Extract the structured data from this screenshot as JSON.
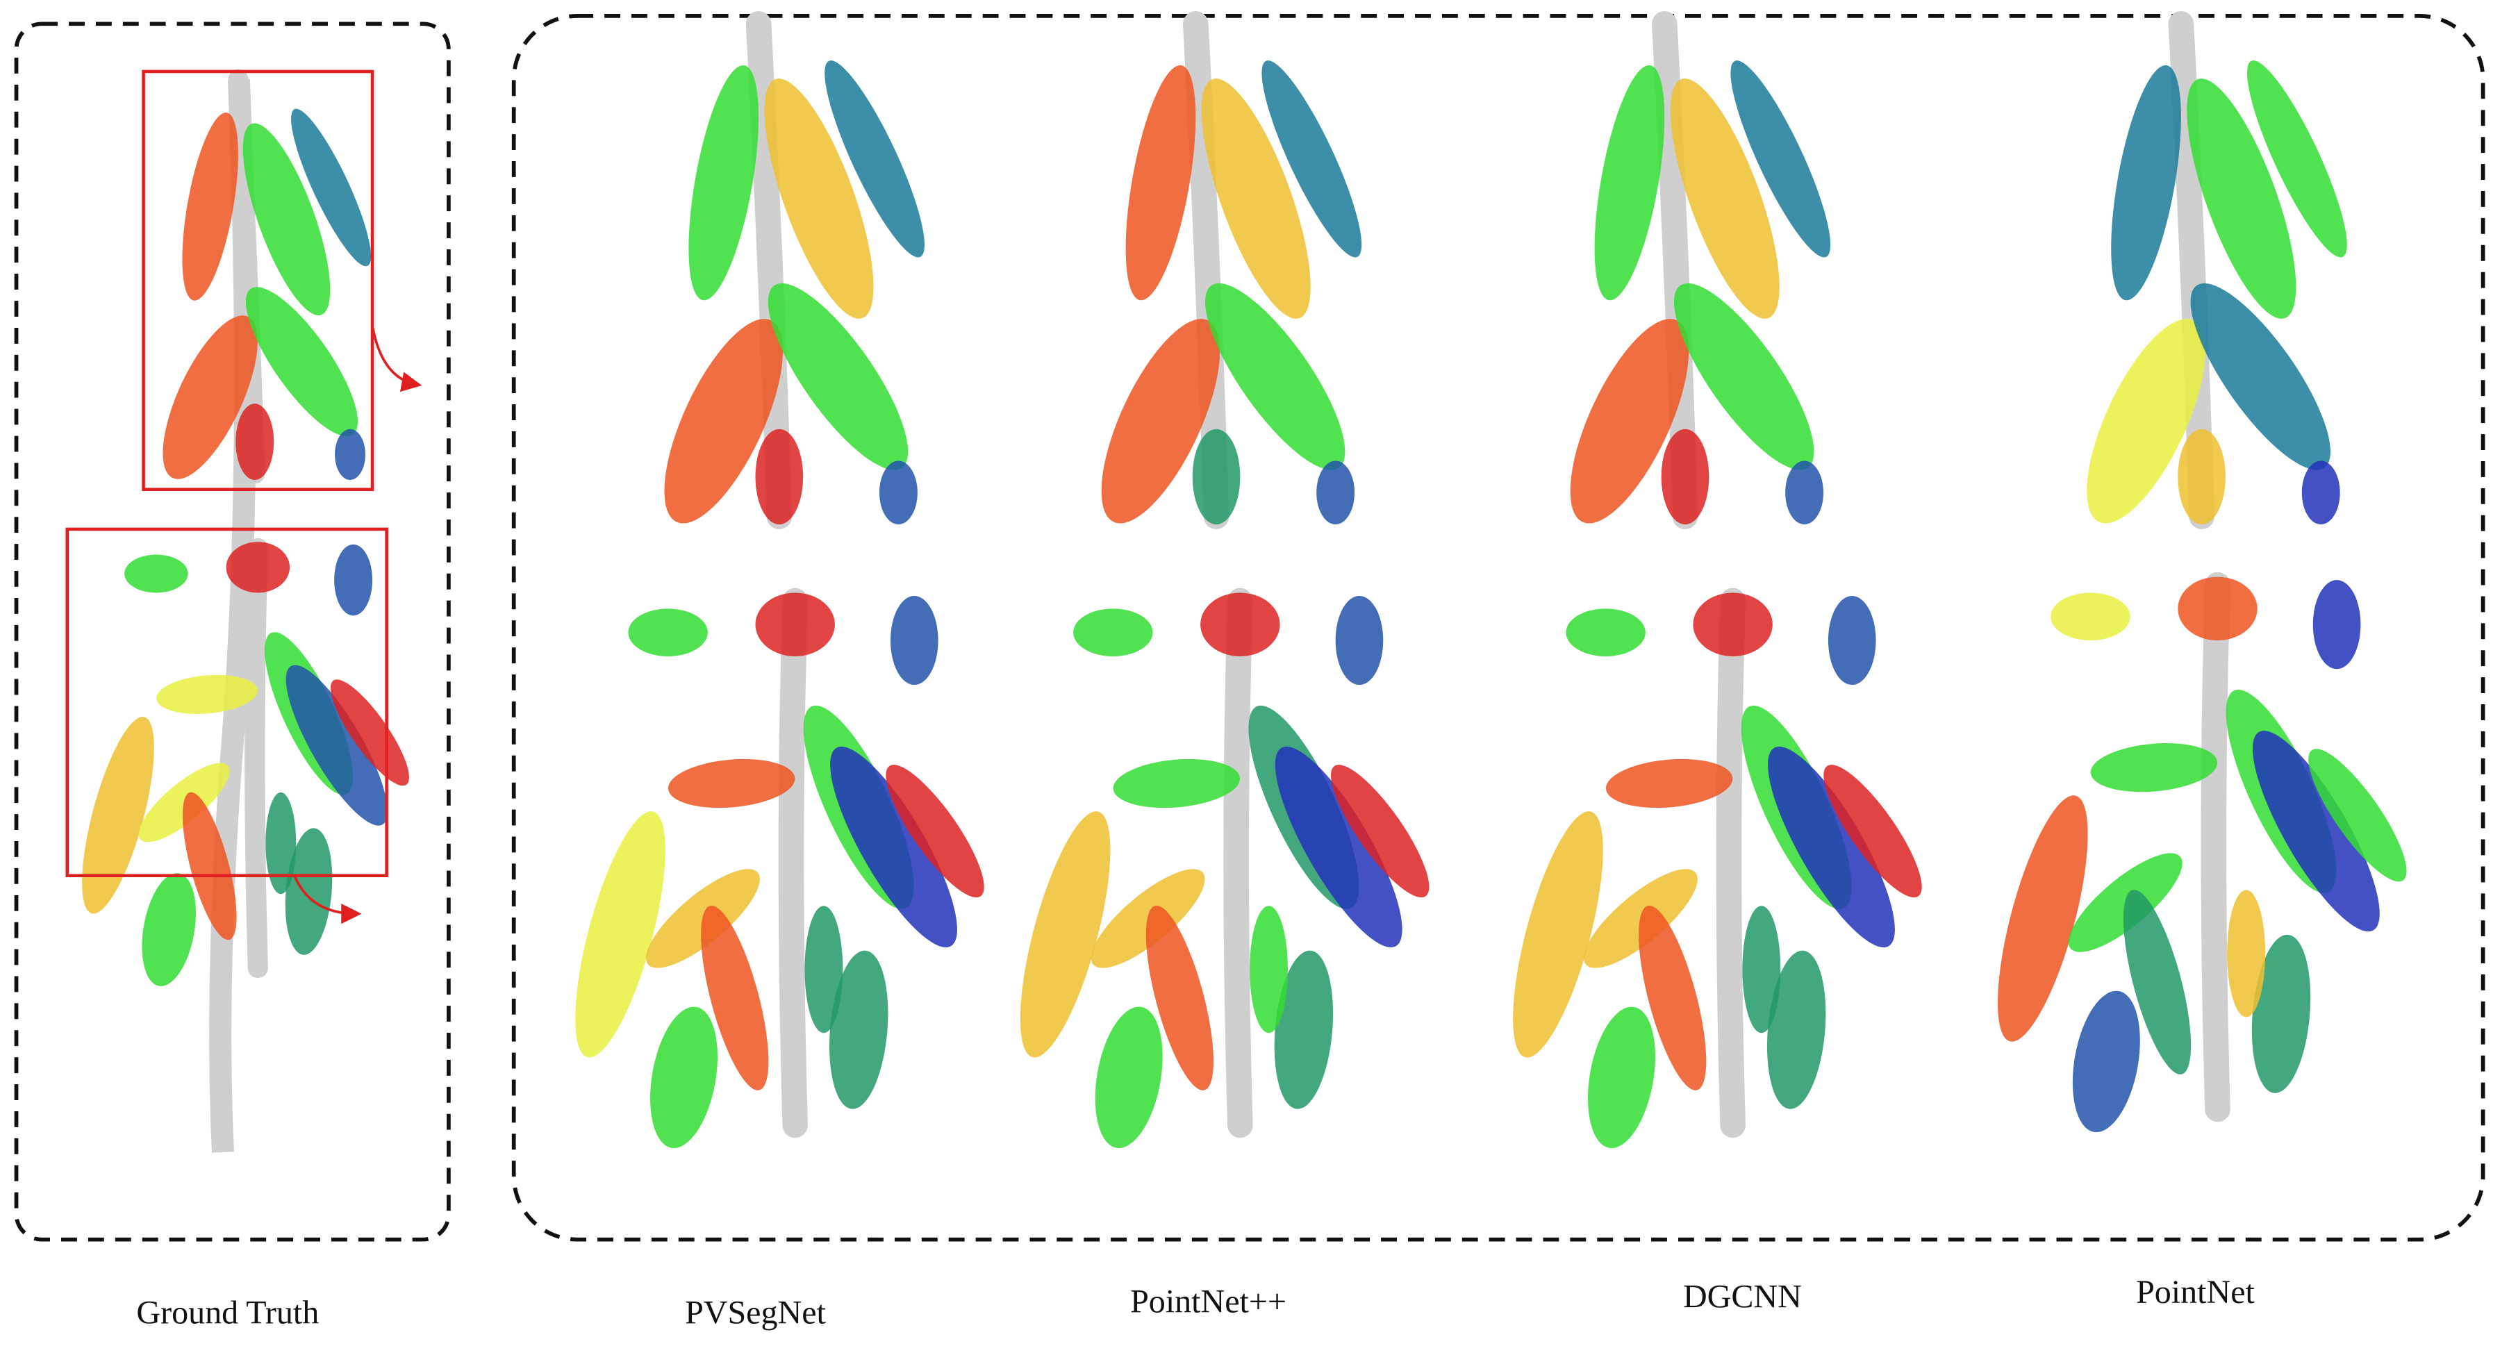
{
  "captions": [
    "Ground Truth",
    "PVSegNet",
    "PointNet++",
    "DGCNN",
    "PointNet"
  ]
}
